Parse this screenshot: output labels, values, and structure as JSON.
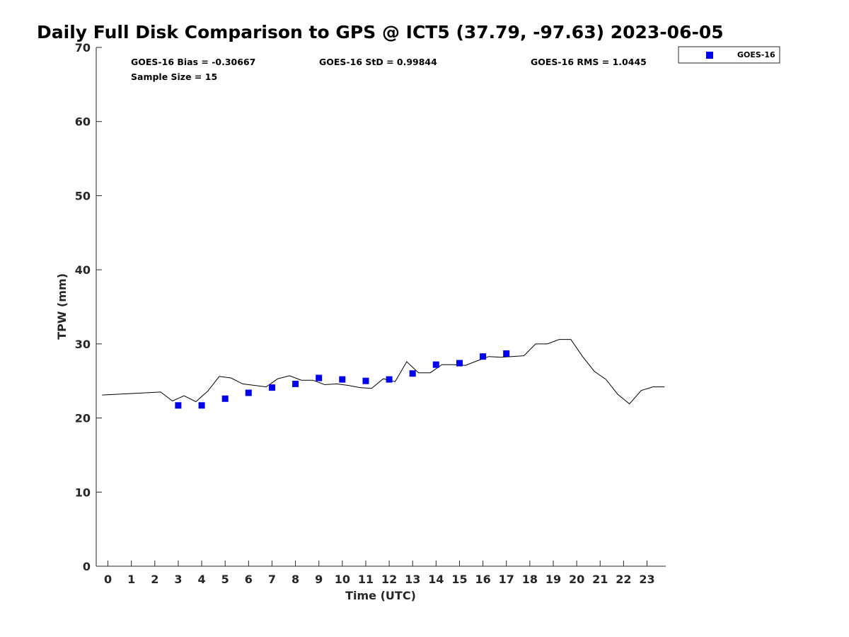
{
  "chart_data": {
    "type": "scatter",
    "title": "Daily Full Disk Comparison to GPS @ ICT5 (37.79, -97.63) 2023-06-05",
    "xlabel": "Time (UTC)",
    "ylabel": "TPW (mm)",
    "xlim": [
      -0.5,
      23.8
    ],
    "ylim": [
      0,
      70
    ],
    "xticks": [
      "0",
      "1",
      "2",
      "3",
      "4",
      "5",
      "6",
      "7",
      "8",
      "9",
      "10",
      "11",
      "12",
      "13",
      "14",
      "15",
      "16",
      "17",
      "18",
      "19",
      "20",
      "21",
      "22",
      "23"
    ],
    "yticks": [
      "0",
      "10",
      "20",
      "30",
      "40",
      "50",
      "60",
      "70"
    ],
    "grid": false,
    "legend_position": "top-right",
    "stats": {
      "bias": "GOES-16 Bias = -0.30667",
      "std": "GOES-16 StD = 0.99844",
      "rms": "GOES-16 RMS = 1.0445",
      "sample": "Sample Size = 15"
    },
    "series": [
      {
        "name": "GOES-16",
        "kind": "markers",
        "color": "#0000ee",
        "x": [
          3,
          4,
          5,
          6,
          7,
          8,
          9,
          10,
          11,
          12,
          13,
          14,
          15,
          16,
          17
        ],
        "y": [
          21.7,
          21.7,
          22.6,
          23.4,
          24.1,
          24.6,
          25.4,
          25.2,
          25.0,
          25.2,
          26.0,
          27.2,
          27.4,
          28.3,
          28.7
        ]
      },
      {
        "kind": "line",
        "color": "#000000",
        "x": [
          -0.25,
          2.25,
          2.75,
          3.25,
          3.75,
          4.25,
          4.75,
          5.25,
          5.75,
          6.25,
          6.75,
          7.25,
          7.75,
          8.25,
          8.75,
          9.25,
          9.75,
          10.25,
          10.75,
          11.25,
          11.75,
          12.25,
          12.75,
          13.25,
          13.75,
          14.25,
          14.75,
          15.25,
          15.75,
          16.25,
          16.75,
          17.25,
          17.75,
          18.25,
          18.75,
          19.25,
          19.75,
          20.25,
          20.75,
          21.25,
          21.75,
          22.25,
          22.75,
          23.25,
          23.75
        ],
        "y": [
          23.1,
          23.5,
          22.3,
          23.0,
          22.2,
          23.6,
          25.6,
          25.4,
          24.6,
          24.4,
          24.2,
          25.3,
          25.7,
          25.1,
          25.1,
          24.5,
          24.6,
          24.4,
          24.1,
          24.0,
          25.3,
          24.9,
          27.6,
          26.1,
          26.1,
          27.2,
          27.2,
          27.1,
          27.7,
          28.3,
          28.2,
          28.3,
          28.4,
          30.0,
          30.0,
          30.6,
          30.6,
          28.3,
          26.3,
          25.2,
          23.2,
          21.9,
          23.7,
          24.2,
          24.2
        ]
      }
    ]
  }
}
